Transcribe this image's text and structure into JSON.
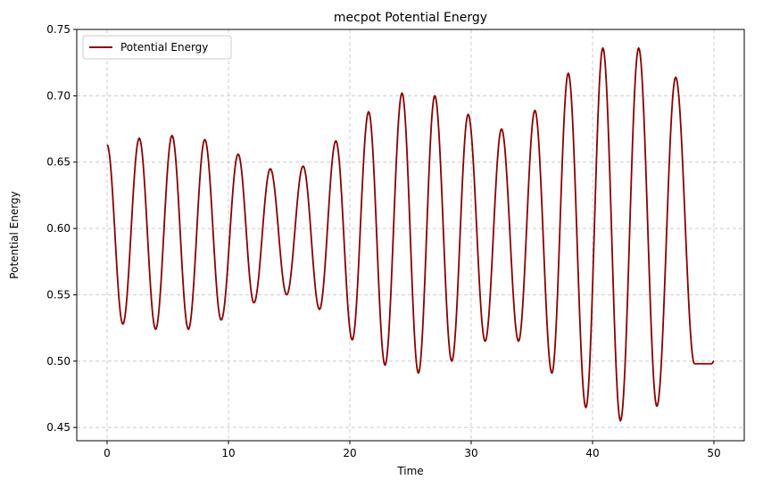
{
  "chart_data": {
    "type": "line",
    "title": "mecpot Potential Energy",
    "xlabel": "Time",
    "ylabel": "Potential Energy",
    "xlim": [
      -2.5,
      52.5
    ],
    "ylim": [
      0.44,
      0.75
    ],
    "xticks": [
      0,
      10,
      20,
      30,
      40,
      50
    ],
    "yticks": [
      0.45,
      0.5,
      0.55,
      0.6,
      0.65,
      0.7,
      0.75
    ],
    "xtick_labels": [
      "0",
      "10",
      "20",
      "30",
      "40",
      "50"
    ],
    "ytick_labels": [
      "0.45",
      "0.50",
      "0.55",
      "0.60",
      "0.65",
      "0.70",
      "0.75"
    ],
    "grid": true,
    "legend_position": "top-left",
    "series": [
      {
        "name": "Potential Energy",
        "color": "#8b0000",
        "x": [
          0.0,
          1.3,
          2.65,
          4.0,
          5.35,
          6.7,
          8.05,
          9.4,
          10.8,
          12.1,
          13.45,
          14.8,
          16.15,
          17.5,
          18.85,
          20.2,
          21.55,
          22.9,
          24.3,
          25.65,
          27.0,
          28.4,
          29.75,
          31.15,
          32.5,
          33.9,
          35.25,
          36.65,
          38.0,
          39.45,
          40.85,
          42.3,
          43.8,
          45.3,
          46.85,
          48.4,
          49.8,
          50.0
        ],
        "y": [
          0.663,
          0.528,
          0.668,
          0.524,
          0.67,
          0.524,
          0.667,
          0.531,
          0.656,
          0.544,
          0.645,
          0.55,
          0.647,
          0.539,
          0.666,
          0.516,
          0.688,
          0.497,
          0.702,
          0.491,
          0.7,
          0.5,
          0.686,
          0.515,
          0.675,
          0.515,
          0.689,
          0.491,
          0.717,
          0.465,
          0.736,
          0.455,
          0.736,
          0.466,
          0.714,
          0.498,
          0.498,
          0.5
        ]
      }
    ]
  },
  "colors": {
    "line": "#8b0000",
    "grid": "#cccccc"
  }
}
